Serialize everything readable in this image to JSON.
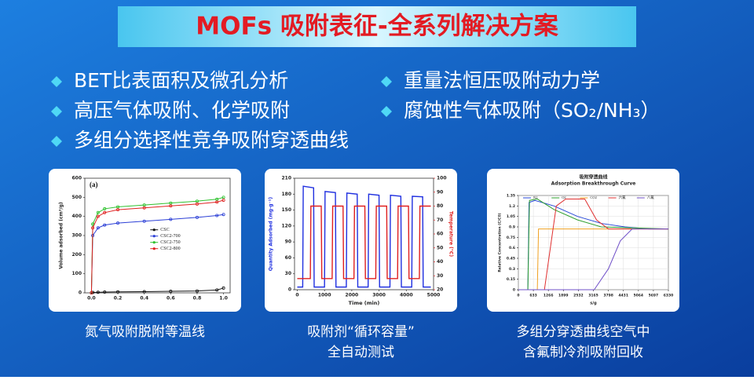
{
  "header": {
    "title": "MOFs  吸附表征-全系列解决方案"
  },
  "bullets": {
    "left": [
      "BET比表面积及微孔分析",
      "高压气体吸附、化学吸附",
      "多组分选择性竞争吸附穿透曲线"
    ],
    "right": [
      "重量法恒压吸附动力学",
      "腐蚀性气体吸附（SO₂/NH₃）"
    ]
  },
  "chart_data": [
    {
      "type": "line",
      "annotation": "(a)",
      "ylabel": "Volume adsorbed (cm³/g)",
      "xlim": [
        -0.05,
        1.05
      ],
      "ylim": [
        0,
        600
      ],
      "xticks": [
        {
          "value": 0,
          "label": "0.0"
        },
        {
          "value": 0.2,
          "label": "0.2"
        },
        {
          "value": 0.4,
          "label": "0.4"
        },
        {
          "value": 0.6,
          "label": "0.6"
        },
        {
          "value": 0.8,
          "label": "0.8"
        },
        {
          "value": 1,
          "label": "1.0"
        }
      ],
      "yticks": [
        0,
        100,
        200,
        300,
        400,
        500,
        600
      ],
      "markers": true,
      "legend": "center-right",
      "series": [
        {
          "name": "CSC",
          "color": "#111111",
          "x": [
            0,
            0.01,
            0.05,
            0.1,
            0.2,
            0.4,
            0.6,
            0.8,
            0.95,
            1.0
          ],
          "values": [
            0,
            2,
            3,
            4,
            5,
            6,
            8,
            10,
            15,
            25
          ]
        },
        {
          "name": "CSC2-700",
          "color": "#2b3fd6",
          "x": [
            0,
            0.01,
            0.05,
            0.1,
            0.2,
            0.4,
            0.6,
            0.8,
            0.95,
            1.0
          ],
          "values": [
            0,
            300,
            340,
            355,
            365,
            375,
            385,
            395,
            405,
            410
          ]
        },
        {
          "name": "CSC2-750",
          "color": "#2fc22f",
          "x": [
            0,
            0.01,
            0.05,
            0.1,
            0.2,
            0.4,
            0.6,
            0.8,
            0.95,
            1.0
          ],
          "values": [
            0,
            360,
            420,
            440,
            450,
            460,
            470,
            480,
            490,
            500
          ]
        },
        {
          "name": "CSC2-800",
          "color": "#e02020",
          "x": [
            0,
            0.01,
            0.05,
            0.1,
            0.2,
            0.4,
            0.6,
            0.8,
            0.95,
            1.0
          ],
          "values": [
            0,
            340,
            400,
            420,
            435,
            445,
            455,
            465,
            475,
            485
          ]
        }
      ]
    },
    {
      "type": "line",
      "xlabel": "Time (min)",
      "ylabel": "Quantity Adsorbed (mg·g⁻¹)",
      "y2label": "Temperature (°C)",
      "xlim": [
        -100,
        5000
      ],
      "ylim": [
        0,
        210
      ],
      "y2lim": [
        20,
        100
      ],
      "xticks": [
        0,
        1000,
        2000,
        3000,
        4000,
        5000
      ],
      "yticks": [
        0,
        30,
        60,
        90,
        120,
        150,
        180,
        210
      ],
      "y2ticks": [
        20,
        30,
        40,
        50,
        60,
        70,
        80,
        90,
        100
      ],
      "markers": false,
      "series": [
        {
          "color": "#1f2fe0",
          "x": [
            0,
            200,
            220,
            600,
            620,
            1000,
            1020,
            1400,
            1420,
            1800,
            1820,
            2200,
            2220,
            2600,
            2620,
            3000,
            3020,
            3400,
            3420,
            3800,
            3820,
            4200,
            4220,
            4600,
            4620,
            4900
          ],
          "values": [
            5,
            5,
            195,
            192,
            5,
            5,
            185,
            183,
            5,
            5,
            182,
            180,
            5,
            5,
            180,
            178,
            5,
            5,
            178,
            176,
            5,
            5,
            176,
            175,
            5,
            5
          ]
        },
        {
          "color": "#e02020",
          "axis": "y2",
          "x": [
            0,
            480,
            500,
            880,
            900,
            1280,
            1300,
            1680,
            1700,
            2080,
            2100,
            2480,
            2500,
            2880,
            2900,
            3280,
            3300,
            3680,
            3700,
            4080,
            4100,
            4480,
            4500,
            4900
          ],
          "values": [
            28,
            28,
            80,
            80,
            28,
            28,
            80,
            80,
            28,
            28,
            80,
            80,
            28,
            28,
            80,
            80,
            28,
            28,
            80,
            80,
            28,
            28,
            80,
            80
          ]
        }
      ]
    },
    {
      "type": "line",
      "title": "吸附穿透曲线",
      "subtitle": "Adsorption Breakthrough Curve",
      "xlabel": "s/g",
      "ylabel": "Relative Concentration (C/C0)",
      "xlim": [
        0,
        6330
      ],
      "ylim": [
        0,
        1.35
      ],
      "xticks": [
        0,
        633,
        1266,
        1899,
        2532,
        3165,
        3798,
        4431,
        5064,
        5697,
        6330
      ],
      "yticks": [
        0,
        0.15,
        0.3,
        0.45,
        0.6,
        0.75,
        0.9,
        1.05,
        1.2,
        1.35
      ],
      "markers": false,
      "legend": "top",
      "grid": true,
      "series": [
        {
          "name": "N2",
          "color": "#2a4ad8",
          "x": [
            0,
            400,
            450,
            700,
            1500,
            2500,
            3500,
            4500,
            5500,
            6330
          ],
          "values": [
            0,
            0,
            1.25,
            1.28,
            1.2,
            1.05,
            0.95,
            0.9,
            0.87,
            0.87
          ]
        },
        {
          "name": "O2",
          "color": "#2fa02f",
          "x": [
            0,
            400,
            470,
            800,
            1500,
            2500,
            3500,
            6330
          ],
          "values": [
            0,
            0,
            1.28,
            1.3,
            1.15,
            1.0,
            0.9,
            0.87
          ]
        },
        {
          "name": "CO2",
          "color": "#f0a020",
          "x": [
            0,
            800,
            850,
            2000,
            6330
          ],
          "values": [
            0,
            0,
            0.87,
            0.87,
            0.87
          ]
        },
        {
          "name": "六氟",
          "color": "#e03030",
          "x": [
            0,
            1100,
            1600,
            2000,
            2800,
            3300,
            3800,
            6330
          ],
          "values": [
            0,
            0,
            1.2,
            1.3,
            1.3,
            1.0,
            0.87,
            0.87
          ]
        },
        {
          "name": "八氟",
          "color": "#7050c8",
          "x": [
            0,
            3200,
            3800,
            4300,
            4800,
            6330
          ],
          "values": [
            0,
            0,
            0.3,
            0.7,
            0.87,
            0.87
          ]
        }
      ]
    }
  ],
  "captions": [
    [
      "氮气吸附脱附等温线"
    ],
    [
      "吸附剂“循环容量”",
      "全自动测试"
    ],
    [
      "多组分穿透曲线空气中",
      "含氟制冷剂吸附回收"
    ]
  ]
}
